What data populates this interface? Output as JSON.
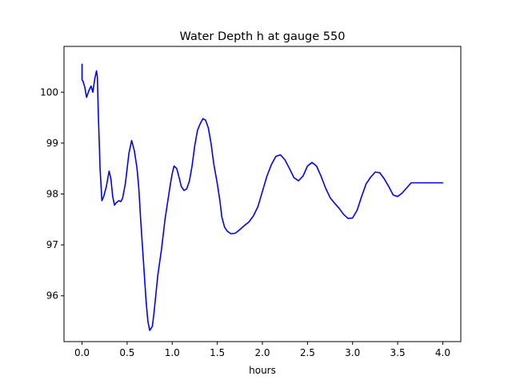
{
  "chart_data": {
    "type": "line",
    "title": "Water Depth h at gauge 550",
    "xlabel": "hours",
    "ylabel": "",
    "xlim": [
      -0.2,
      4.2
    ],
    "ylim": [
      95.1,
      100.9
    ],
    "xticks": [
      0.0,
      0.5,
      1.0,
      1.5,
      2.0,
      2.5,
      3.0,
      3.5,
      4.0
    ],
    "xtick_labels": [
      "0.0",
      "0.5",
      "1.0",
      "1.5",
      "2.0",
      "2.5",
      "3.0",
      "3.5",
      "4.0"
    ],
    "yticks": [
      96,
      97,
      98,
      99,
      100
    ],
    "ytick_labels": [
      "96",
      "97",
      "98",
      "99",
      "100"
    ],
    "grid": false,
    "legend": null,
    "series": [
      {
        "color": "#0000ff",
        "x": [
          0.0,
          0.0,
          0.01,
          0.03,
          0.05,
          0.08,
          0.1,
          0.12,
          0.14,
          0.16,
          0.17,
          0.18,
          0.2,
          0.22,
          0.24,
          0.27,
          0.3,
          0.32,
          0.34,
          0.36,
          0.38,
          0.41,
          0.43,
          0.45,
          0.48,
          0.5,
          0.52,
          0.55,
          0.58,
          0.61,
          0.63,
          0.65,
          0.68,
          0.71,
          0.73,
          0.75,
          0.78,
          0.8,
          0.82,
          0.84,
          0.86,
          0.88,
          0.9,
          0.92,
          0.95,
          0.98,
          1.0,
          1.02,
          1.05,
          1.08,
          1.1,
          1.13,
          1.16,
          1.19,
          1.22,
          1.25,
          1.28,
          1.31,
          1.34,
          1.37,
          1.4,
          1.43,
          1.46,
          1.5,
          1.53,
          1.55,
          1.58,
          1.61,
          1.65,
          1.7,
          1.75,
          1.8,
          1.85,
          1.9,
          1.95,
          2.0,
          2.05,
          2.1,
          2.15,
          2.2,
          2.25,
          2.3,
          2.35,
          2.4,
          2.45,
          2.5,
          2.55,
          2.6,
          2.65,
          2.7,
          2.75,
          2.8,
          2.85,
          2.9,
          2.95,
          3.0,
          3.05,
          3.1,
          3.15,
          3.2,
          3.25,
          3.3,
          3.35,
          3.4,
          3.45,
          3.5,
          3.55,
          3.6,
          3.65,
          3.7,
          3.75,
          3.8,
          3.85,
          3.9,
          3.95,
          4.0
        ],
        "y": [
          100.55,
          100.24,
          100.22,
          100.1,
          99.9,
          100.05,
          100.12,
          100.0,
          100.25,
          100.42,
          100.3,
          99.6,
          98.5,
          97.87,
          97.95,
          98.15,
          98.45,
          98.3,
          97.95,
          97.78,
          97.83,
          97.87,
          97.85,
          97.92,
          98.2,
          98.5,
          98.8,
          99.05,
          98.85,
          98.5,
          98.1,
          97.5,
          96.7,
          95.9,
          95.5,
          95.32,
          95.4,
          95.7,
          96.05,
          96.4,
          96.65,
          96.9,
          97.2,
          97.5,
          97.85,
          98.2,
          98.4,
          98.55,
          98.5,
          98.3,
          98.15,
          98.07,
          98.1,
          98.25,
          98.55,
          98.95,
          99.25,
          99.38,
          99.48,
          99.45,
          99.3,
          99.0,
          98.6,
          98.2,
          97.85,
          97.55,
          97.35,
          97.27,
          97.22,
          97.23,
          97.3,
          97.38,
          97.45,
          97.57,
          97.75,
          98.05,
          98.35,
          98.58,
          98.74,
          98.77,
          98.67,
          98.5,
          98.32,
          98.26,
          98.35,
          98.55,
          98.62,
          98.55,
          98.35,
          98.12,
          97.93,
          97.82,
          97.72,
          97.6,
          97.52,
          97.53,
          97.68,
          97.95,
          98.2,
          98.33,
          98.43,
          98.42,
          98.3,
          98.15,
          97.98,
          97.95,
          98.02,
          98.12,
          98.22,
          98.22,
          98.22,
          98.22,
          98.22,
          98.22,
          98.22,
          98.22
        ],
        "note": ""
      }
    ]
  }
}
